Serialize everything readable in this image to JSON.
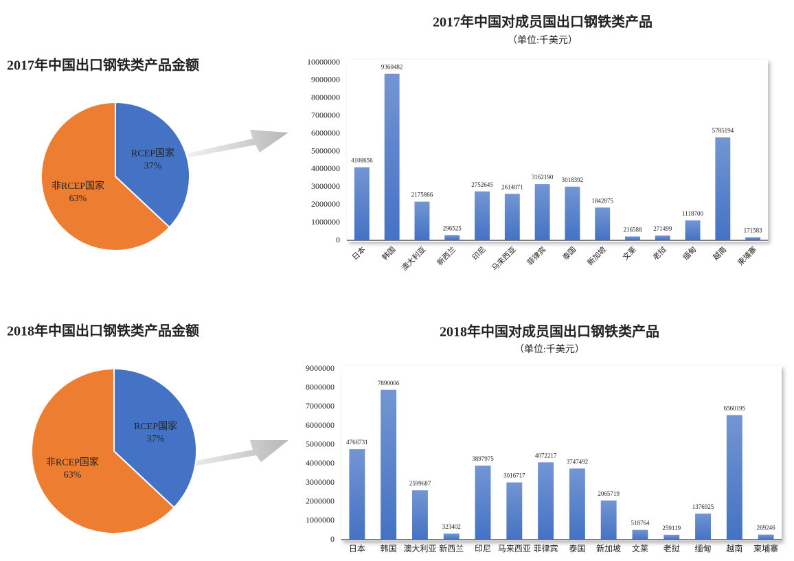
{
  "chart_data": [
    {
      "type": "pie",
      "title": "2017年中国出口钢铁类产品金额",
      "categories": [
        "RCEP国家",
        "非RCEP国家"
      ],
      "values": [
        37,
        63
      ],
      "value_labels": [
        "37%",
        "63%"
      ],
      "colors": [
        "#4472c4",
        "#ed7d31"
      ]
    },
    {
      "type": "bar",
      "title": "2017年中国对成员国出口钢铁类产品",
      "subtitle": "（单位:千美元）",
      "categories": [
        "日本",
        "韩国",
        "澳大利亚",
        "新西兰",
        "印尼",
        "马来西亚",
        "菲律宾",
        "泰国",
        "新加坡",
        "文莱",
        "老挝",
        "缅甸",
        "越南",
        "柬埔寨"
      ],
      "values": [
        4108656,
        9360482,
        2175866,
        296525,
        2752645,
        2614071,
        3162190,
        3018392,
        1842875,
        216588,
        271499,
        1118700,
        5785194,
        171583
      ],
      "color": "#4472c4",
      "ylim": [
        0,
        10000000
      ],
      "yticks": [
        0,
        1000000,
        2000000,
        3000000,
        4000000,
        5000000,
        6000000,
        7000000,
        8000000,
        9000000,
        10000000
      ]
    },
    {
      "type": "pie",
      "title": "2018年中国出口钢铁类产品金额",
      "categories": [
        "RCEP国家",
        "非RCEP国家"
      ],
      "values": [
        37,
        63
      ],
      "value_labels": [
        "37%",
        "63%"
      ],
      "colors": [
        "#4472c4",
        "#ed7d31"
      ]
    },
    {
      "type": "bar",
      "title": "2018年中国对成员国出口钢铁类产品",
      "subtitle": "（单位:千美元）",
      "categories": [
        "日本",
        "韩国",
        "澳大利亚",
        "新西兰",
        "印尼",
        "马来西亚",
        "菲律宾",
        "泰国",
        "新加坡",
        "文莱",
        "老挝",
        "缅甸",
        "越南",
        "柬埔寨"
      ],
      "values": [
        4766731,
        7890006,
        2599687,
        323402,
        3897975,
        3016717,
        4072217,
        3747492,
        2065719,
        518764,
        259119,
        1376925,
        6560195,
        269246
      ],
      "color": "#4472c4",
      "ylim": [
        0,
        9000000
      ],
      "yticks": [
        0,
        1000000,
        2000000,
        3000000,
        4000000,
        5000000,
        6000000,
        7000000,
        8000000,
        9000000
      ]
    }
  ]
}
